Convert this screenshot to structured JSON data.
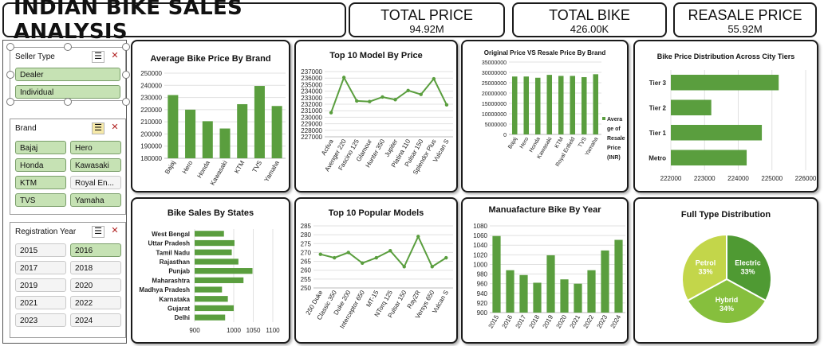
{
  "header": {
    "title": "INDIAN BIKE SALES ANALYSIS",
    "kpis": [
      {
        "label": "TOTAL PRICE",
        "value": "94.92M"
      },
      {
        "label": "TOTAL BIKE",
        "value": "426.00K"
      },
      {
        "label": "REASALE PRICE",
        "value": "55.92M"
      }
    ]
  },
  "slicers": {
    "seller_type": {
      "title": "Seller Type",
      "items": [
        {
          "label": "Dealer",
          "selected": true
        },
        {
          "label": "Individual",
          "selected": true
        }
      ]
    },
    "brand": {
      "title": "Brand",
      "items": [
        {
          "label": "Bajaj",
          "selected": true
        },
        {
          "label": "Hero",
          "selected": true
        },
        {
          "label": "Honda",
          "selected": true
        },
        {
          "label": "Kawasaki",
          "selected": true
        },
        {
          "label": "KTM",
          "selected": true
        },
        {
          "label": "Royal En...",
          "selected": false
        },
        {
          "label": "TVS",
          "selected": true
        },
        {
          "label": "Yamaha",
          "selected": true
        }
      ]
    },
    "registration_year": {
      "title": "Registration Year",
      "items": [
        {
          "label": "2015",
          "selected": false
        },
        {
          "label": "2016",
          "selected": true
        },
        {
          "label": "2017",
          "selected": false
        },
        {
          "label": "2018",
          "selected": false
        },
        {
          "label": "2019",
          "selected": false
        },
        {
          "label": "2020",
          "selected": false
        },
        {
          "label": "2021",
          "selected": false
        },
        {
          "label": "2022",
          "selected": false
        },
        {
          "label": "2023",
          "selected": false
        },
        {
          "label": "2024",
          "selected": false
        }
      ]
    }
  },
  "colors": {
    "bar": "#5a9e3e",
    "line": "#5a9e3e",
    "pie": [
      "#4f9a33",
      "#86bf3d",
      "#c3d64a"
    ]
  },
  "chart_data": [
    {
      "id": "avg_price_brand",
      "type": "bar",
      "title": "Average Bike Price By Brand",
      "categories": [
        "Bajaj",
        "Hero",
        "Honda",
        "Kawasaki",
        "KTM",
        "TVS",
        "Yamaha"
      ],
      "values": [
        232000,
        220000,
        210500,
        204500,
        224500,
        239500,
        223000
      ],
      "ylim": [
        180000,
        250000
      ],
      "yticks": [
        "180000",
        "190000",
        "200000",
        "210000",
        "220000",
        "230000",
        "240000",
        "250000"
      ]
    },
    {
      "id": "top10_model_price",
      "type": "line",
      "title": "Top 10 Model By Price",
      "categories": [
        "Activa",
        "Avenger 220",
        "Fascino 125",
        "Glamour",
        "Hunter 350",
        "Jupiter",
        "Platina 110",
        "Pulsar 150",
        "Splendor Plus",
        "Vulcan S"
      ],
      "values": [
        230700,
        236100,
        232500,
        232400,
        233100,
        232700,
        234100,
        233500,
        235900,
        231900
      ],
      "ylim": [
        227000,
        237000
      ],
      "yticks": [
        "227000",
        "228000",
        "229000",
        "230000",
        "231000",
        "232000",
        "233000",
        "234000",
        "235000",
        "236000",
        "237000"
      ]
    },
    {
      "id": "orig_vs_resale",
      "type": "bar",
      "title": "Original Price VS Resale Price By Brand",
      "categories": [
        "Bajaj",
        "Hero",
        "Honda",
        "Kawasaki",
        "KTM",
        "Royal Enfield",
        "TVS",
        "Yamaha"
      ],
      "series": [
        {
          "name": "Average of Resale Price (INR)",
          "values": [
            28000000,
            28000000,
            27400000,
            28800000,
            28300000,
            28300000,
            27700000,
            29100000
          ]
        }
      ],
      "ylim": [
        0,
        35000000
      ],
      "yticks": [
        "0",
        "5000000",
        "10000000",
        "15000000",
        "20000000",
        "25000000",
        "30000000",
        "35000000"
      ],
      "legend": "right",
      "legend_lines": [
        "Avera",
        "ge of",
        "Resale",
        "Price",
        "(INR)"
      ]
    },
    {
      "id": "price_dist_tiers",
      "type": "bar",
      "title": "Bike Price Distribution Across City Tiers",
      "orientation": "horizontal",
      "categories": [
        "Tier 3",
        "Tier 2",
        "Tier 1",
        "Metro"
      ],
      "values": [
        225200,
        223200,
        224700,
        224250
      ],
      "xlim": [
        222000,
        226000
      ],
      "xticks": [
        "222000",
        "223000",
        "224000",
        "225000",
        "226000"
      ]
    },
    {
      "id": "sales_by_states",
      "type": "bar",
      "title": "Bike Sales By States",
      "orientation": "horizontal",
      "categories": [
        "West Bengal",
        "Uttar Pradesh",
        "Tamil Nadu",
        "Rajasthan",
        "Punjab",
        "Maharashtra",
        "Madhya Pradesh",
        "Karnataka",
        "Gujarat",
        "Delhi"
      ],
      "values": [
        975,
        1002,
        995,
        1012,
        1048,
        1025,
        970,
        985,
        1000,
        978
      ],
      "xlim": [
        900,
        1100
      ],
      "xticks": [
        "900",
        "1000",
        "1050",
        "1100"
      ],
      "xtick_values": [
        900,
        1000,
        1050,
        1100
      ]
    },
    {
      "id": "popular_models",
      "type": "line",
      "title": "Top 10 Popular Models",
      "categories": [
        "250 Duke",
        "Classic 350",
        "Duke 200",
        "Interceptor 650",
        "MT-15",
        "NTorq 125",
        "Pulsar 150",
        "RayZR",
        "Versys 650",
        "Vulcan S"
      ],
      "values": [
        269,
        267,
        270,
        264,
        267,
        271,
        262,
        279,
        262,
        267
      ],
      "ylim": [
        250,
        285
      ],
      "yticks": [
        "250",
        "255",
        "260",
        "265",
        "270",
        "275",
        "280",
        "285"
      ]
    },
    {
      "id": "manufacture_by_year",
      "type": "bar",
      "title": "Manuafacture Bike By Year",
      "categories": [
        "2015",
        "2016",
        "2017",
        "2018",
        "2019",
        "2020",
        "2021",
        "2022",
        "2023",
        "2024"
      ],
      "values": [
        1059,
        988,
        978,
        962,
        1019,
        969,
        960,
        988,
        1029,
        1051
      ],
      "ylim": [
        900,
        1080
      ],
      "yticks": [
        "900",
        "920",
        "940",
        "960",
        "980",
        "1000",
        "1020",
        "1040",
        "1060",
        "1080"
      ]
    },
    {
      "id": "fuel_type",
      "type": "pie",
      "title": "Full Type Distribution",
      "slices": [
        {
          "label": "Electric",
          "pct": "33%",
          "value": 33
        },
        {
          "label": "Hybrid",
          "pct": "34%",
          "value": 34
        },
        {
          "label": "Petrol",
          "pct": "33%",
          "value": 33
        }
      ]
    }
  ]
}
